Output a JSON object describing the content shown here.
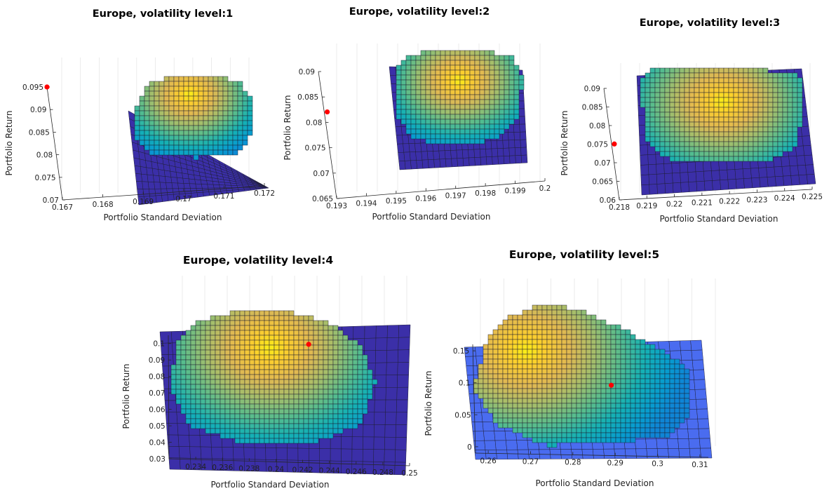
{
  "chart_data": [
    {
      "type": "surface",
      "title": "Europe, volatility level:1",
      "xlabel": "Portfolio Standard Deviation",
      "ylabel": "Portfolio Return",
      "xticks": [
        "0.167",
        "0.168",
        "0.169",
        "0.17",
        "0.171",
        "0.172"
      ],
      "yticks": [
        "0.07",
        "0.075",
        "0.08",
        "0.085",
        "0.09",
        "0.095"
      ],
      "xlim": [
        0.167,
        0.172
      ],
      "ylim": [
        0.07,
        0.095
      ],
      "point": {
        "x": 0.167,
        "y": 0.095
      },
      "colormap": "parula",
      "point_color": "#ff0000",
      "floor_color": "#3b2fa8"
    },
    {
      "type": "surface",
      "title": "Europe, volatility level:2",
      "xlabel": "Portfolio Standard Deviation",
      "ylabel": "Portfolio Return",
      "xticks": [
        "0.193",
        "0.194",
        "0.195",
        "0.196",
        "0.197",
        "0.198",
        "0.199",
        "0.2"
      ],
      "yticks": [
        "0.065",
        "0.07",
        "0.075",
        "0.08",
        "0.085",
        "0.09"
      ],
      "xlim": [
        0.193,
        0.2
      ],
      "ylim": [
        0.065,
        0.09
      ],
      "point": {
        "x": 0.1931,
        "y": 0.082
      },
      "colormap": "parula",
      "point_color": "#ff0000",
      "floor_color": "#3b2fa8"
    },
    {
      "type": "surface",
      "title": "Europe, volatility level:3",
      "xlabel": "Portfolio Standard Deviation",
      "ylabel": "Portfolio Return",
      "xticks": [
        "0.218",
        "0.219",
        "0.22",
        "0.221",
        "0.222",
        "0.223",
        "0.224",
        "0.225"
      ],
      "yticks": [
        "0.06",
        "0.065",
        "0.07",
        "0.075",
        "0.08",
        "0.085",
        "0.09"
      ],
      "xlim": [
        0.218,
        0.225
      ],
      "ylim": [
        0.06,
        0.09
      ],
      "point": {
        "x": 0.2181,
        "y": 0.075
      },
      "colormap": "parula",
      "point_color": "#ff0000",
      "floor_color": "#3b2fa8"
    },
    {
      "type": "surface",
      "title": "Europe, volatility level:4",
      "xlabel": "Portfolio Standard Deviation",
      "ylabel": "Portfolio Return",
      "xticks": [
        "0.234",
        "0.236",
        "0.238",
        "0.24",
        "0.242",
        "0.244",
        "0.246",
        "0.248",
        "0.25"
      ],
      "yticks": [
        "0.03",
        "0.04",
        "0.05",
        "0.06",
        "0.07",
        "0.08",
        "0.09",
        "0.1"
      ],
      "xlim": [
        0.232,
        0.25
      ],
      "ylim": [
        0.03,
        0.105
      ],
      "point": {
        "x": 0.2425,
        "y": 0.102
      },
      "colormap": "parula",
      "point_color": "#ff0000",
      "floor_color": "#3b2fa8"
    },
    {
      "type": "surface",
      "title": "Europe, volatility level:5",
      "xlabel": "Portfolio Standard Deviation",
      "ylabel": "Portfolio Return",
      "xticks": [
        "0.26",
        "0.27",
        "0.28",
        "0.29",
        "0.3",
        "0.31"
      ],
      "yticks": [
        "0",
        "0.05",
        "0.1",
        "0.15"
      ],
      "xlim": [
        0.257,
        0.312
      ],
      "ylim": [
        -0.01,
        0.16
      ],
      "point": {
        "x": 0.2895,
        "y": 0.1
      },
      "colormap": "parula",
      "point_color": "#ff0000",
      "floor_color": "#4a6cf0"
    }
  ]
}
